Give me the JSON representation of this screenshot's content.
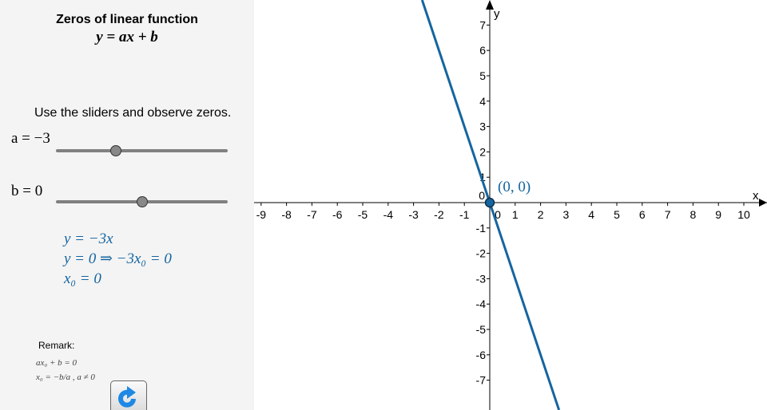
{
  "panel": {
    "title": "Zeros of linear function",
    "formula": "y = ax + b",
    "instruction": "Use the sliders and observe zeros.",
    "slider_a": {
      "label": "a = −3",
      "value": -3,
      "min": -10,
      "max": 10
    },
    "slider_b": {
      "label": "b = 0",
      "value": 0,
      "min": -10,
      "max": 10
    },
    "steps": [
      "y = −3x",
      "y = 0 ⇒ −3x₀ = 0",
      "x₀ = 0"
    ],
    "remark_title": "Remark:",
    "remark_lines": [
      "ax₀ + b = 0",
      "x₀ = −b/a ,  a ≠ 0"
    ],
    "reset_icon": "refresh-icon"
  },
  "graph": {
    "x_label": "x",
    "y_label": "y",
    "x_ticks": [
      -9,
      -8,
      -7,
      -6,
      -5,
      -4,
      -3,
      -2,
      -1,
      0,
      1,
      2,
      3,
      4,
      5,
      6,
      7,
      8,
      9,
      10
    ],
    "y_ticks": [
      7,
      6,
      5,
      4,
      3,
      2,
      1,
      0,
      -1,
      -2,
      -3,
      -4,
      -5,
      -6,
      -7
    ],
    "zero_point_label": "(0, 0)",
    "line_color": "#1565a0",
    "a": -3,
    "b": 0
  }
}
